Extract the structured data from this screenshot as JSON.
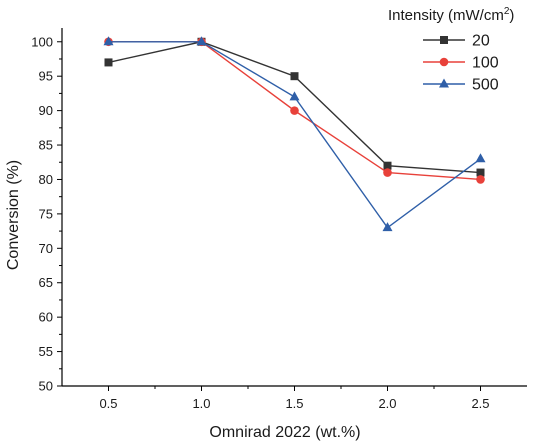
{
  "chart_data": {
    "type": "line",
    "xlabel": "Omnirad 2022 (wt.%)",
    "ylabel": "Conversion (%)",
    "x": [
      0.5,
      1.0,
      1.5,
      2.0,
      2.5
    ],
    "x_tick_labels": [
      "0.5",
      "1.0",
      "1.5",
      "2.0",
      "2.5"
    ],
    "xlim": [
      0.25,
      2.75
    ],
    "ylim": [
      50,
      102
    ],
    "y_ticks": [
      50,
      55,
      60,
      65,
      70,
      75,
      80,
      85,
      90,
      95,
      100
    ],
    "grid": false,
    "legend": {
      "title_main": "Intensity (mW/cm",
      "title_sup": "2",
      "title_end": ")",
      "placement": "top-right"
    },
    "series": [
      {
        "name": "20",
        "color": "#333333",
        "marker": "square",
        "values": [
          97,
          100,
          95,
          82,
          81
        ]
      },
      {
        "name": "100",
        "color": "#e8413a",
        "marker": "circle",
        "values": [
          100,
          100,
          90,
          81,
          80
        ]
      },
      {
        "name": "500",
        "color": "#2f5fa8",
        "marker": "triangle",
        "values": [
          100,
          100,
          92,
          73,
          83
        ]
      }
    ]
  }
}
